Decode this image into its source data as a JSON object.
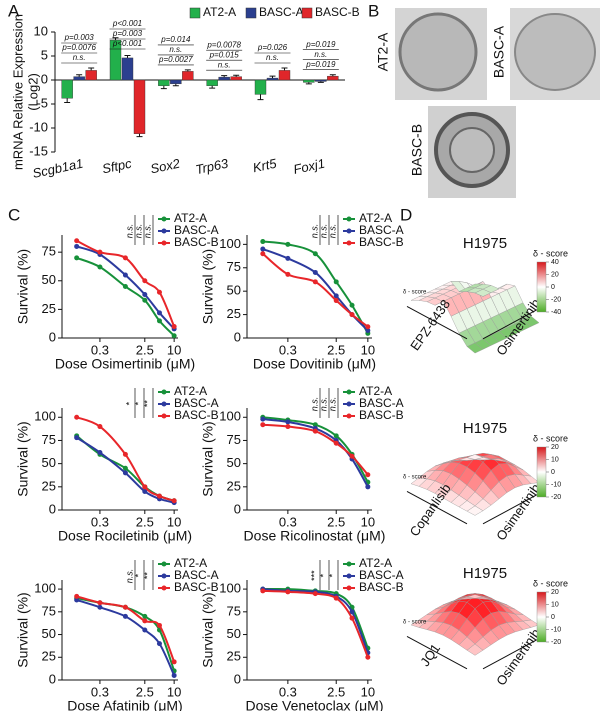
{
  "panel_labels": [
    "A",
    "B",
    "C",
    "D"
  ],
  "micrographs": [
    {
      "label": "AT2-A"
    },
    {
      "label": "BASC-A"
    },
    {
      "label": "BASC-B"
    }
  ],
  "chart_data": [
    {
      "type": "bar",
      "ylabel": [
        "mRNA Relative Expression",
        "(Log2)"
      ],
      "categories": [
        "Scgb1a1",
        "Sftpc",
        "Sox2",
        "Trp63",
        "Krt5",
        "Foxj1"
      ],
      "series": [
        {
          "name": "AT2-A",
          "color": "#22b04b",
          "values": [
            -3.8,
            8.3,
            -1.2,
            -1.2,
            -3.0,
            -0.5
          ],
          "errors": [
            0.9,
            0.5,
            0.6,
            0.5,
            1.1,
            0.3
          ]
        },
        {
          "name": "BASC-A",
          "color": "#2b3f8f",
          "values": [
            0.7,
            4.6,
            -0.8,
            0.6,
            0.4,
            -0.3
          ],
          "errors": [
            0.4,
            0.5,
            0.4,
            0.3,
            0.4,
            0.2
          ]
        },
        {
          "name": "BASC-B",
          "color": "#e0262a",
          "values": [
            2.0,
            -11.2,
            1.8,
            0.7,
            2.0,
            0.8
          ],
          "errors": [
            0.5,
            0.6,
            0.3,
            0.3,
            0.5,
            0.3
          ]
        }
      ],
      "ylim": [
        -15,
        10
      ],
      "yticks": [
        -15,
        -10,
        -5,
        0,
        5,
        10
      ],
      "annotations": [
        [
          "p=0.003",
          "p=0.0076",
          "n.s."
        ],
        [
          "p<0.001",
          "p=0.003",
          "p<0.001"
        ],
        [
          "p=0.014",
          "n.s.",
          "p=0.0027"
        ],
        [
          "p=0.0078",
          "p=0.015",
          "n.s."
        ],
        [
          "p=0.026",
          "n.s."
        ],
        [
          "p=0.019",
          "n.s.",
          "p=0.019"
        ]
      ]
    },
    {
      "type": "line",
      "xlabel": "Dose Osimertinib (μM)",
      "ylabel": "Survival (%)",
      "log_x": true,
      "x": [
        0.1,
        0.3,
        1,
        2.5,
        5,
        10
      ],
      "xlim": [
        0.05,
        12
      ],
      "xticks": [
        0.3,
        2.5,
        10
      ],
      "ylim": [
        0,
        90
      ],
      "yticks": [
        0,
        25,
        50,
        75
      ],
      "series": [
        {
          "name": "AT2-A",
          "color": "#17913a",
          "values": [
            70,
            62,
            45,
            33,
            15,
            2
          ]
        },
        {
          "name": "BASC-A",
          "color": "#2c3a9e",
          "values": [
            80,
            73,
            55,
            38,
            22,
            8
          ]
        },
        {
          "name": "BASC-B",
          "color": "#e8262a",
          "values": [
            85,
            75,
            70,
            50,
            40,
            10
          ]
        }
      ],
      "annotations": [
        "n.s.",
        "n.s.",
        "n.s."
      ]
    },
    {
      "type": "line",
      "xlabel": "Dose Dovitinib (μM)",
      "ylabel": "Survival (%)",
      "log_x": true,
      "x": [
        0.1,
        0.3,
        1,
        2.5,
        5,
        10
      ],
      "xlim": [
        0.05,
        12
      ],
      "xticks": [
        0.3,
        2.5,
        10
      ],
      "ylim": [
        0,
        110
      ],
      "yticks": [
        0,
        25,
        50,
        75,
        100
      ],
      "series": [
        {
          "name": "AT2-A",
          "color": "#17913a",
          "values": [
            103,
            100,
            90,
            60,
            35,
            5
          ]
        },
        {
          "name": "BASC-A",
          "color": "#2c3a9e",
          "values": [
            95,
            85,
            70,
            45,
            25,
            8
          ]
        },
        {
          "name": "BASC-B",
          "color": "#e8262a",
          "values": [
            90,
            68,
            60,
            40,
            25,
            12
          ]
        }
      ],
      "annotations": [
        "n.s.",
        "n.s.",
        "n.s."
      ]
    },
    {
      "type": "line",
      "xlabel": "Dose Rociletinib (μM)",
      "ylabel": "Survival (%)",
      "log_x": true,
      "x": [
        0.1,
        0.3,
        1,
        2.5,
        5,
        10
      ],
      "xlim": [
        0.05,
        12
      ],
      "xticks": [
        0.3,
        2.5,
        10
      ],
      "ylim": [
        0,
        110
      ],
      "yticks": [
        0,
        25,
        50,
        75,
        100
      ],
      "series": [
        {
          "name": "AT2-A",
          "color": "#17913a",
          "values": [
            80,
            60,
            45,
            25,
            15,
            10
          ]
        },
        {
          "name": "BASC-A",
          "color": "#2c3a9e",
          "values": [
            78,
            62,
            40,
            20,
            12,
            8
          ]
        },
        {
          "name": "BASC-B",
          "color": "#e8262a",
          "values": [
            100,
            90,
            60,
            25,
            15,
            10
          ]
        }
      ],
      "annotations": [
        "*",
        "*",
        "**"
      ]
    },
    {
      "type": "line",
      "xlabel": "Dose Ricolinostat (μM)",
      "ylabel": "Survival (%)",
      "log_x": true,
      "x": [
        0.1,
        0.3,
        1,
        2.5,
        5,
        10
      ],
      "xlim": [
        0.05,
        12
      ],
      "xticks": [
        0.3,
        2.5,
        10
      ],
      "ylim": [
        0,
        110
      ],
      "yticks": [
        0,
        25,
        50,
        75,
        100
      ],
      "series": [
        {
          "name": "AT2-A",
          "color": "#17913a",
          "values": [
            100,
            97,
            92,
            80,
            60,
            30
          ]
        },
        {
          "name": "BASC-A",
          "color": "#2c3a9e",
          "values": [
            98,
            95,
            88,
            75,
            55,
            25
          ]
        },
        {
          "name": "BASC-B",
          "color": "#e8262a",
          "values": [
            92,
            90,
            85,
            72,
            58,
            38
          ]
        }
      ],
      "annotations": [
        "n.s.",
        "n.s.",
        "n.s."
      ]
    },
    {
      "type": "line",
      "xlabel": "Dose Afatinib (μM)",
      "ylabel": "Survival (%)",
      "log_x": true,
      "x": [
        0.1,
        0.3,
        1,
        2.5,
        5,
        10
      ],
      "xlim": [
        0.05,
        12
      ],
      "xticks": [
        0.3,
        2.5,
        10
      ],
      "ylim": [
        0,
        110
      ],
      "yticks": [
        0,
        25,
        50,
        75,
        100
      ],
      "series": [
        {
          "name": "AT2-A",
          "color": "#17913a",
          "values": [
            90,
            85,
            80,
            70,
            55,
            10
          ]
        },
        {
          "name": "BASC-A",
          "color": "#2c3a9e",
          "values": [
            88,
            80,
            70,
            55,
            40,
            5
          ]
        },
        {
          "name": "BASC-B",
          "color": "#e8262a",
          "values": [
            92,
            85,
            80,
            65,
            60,
            20
          ]
        }
      ],
      "annotations": [
        "n.s.",
        "*",
        "**"
      ]
    },
    {
      "type": "line",
      "xlabel": "Dose Venetoclax (μM)",
      "ylabel": "Survival (%)",
      "log_x": true,
      "x": [
        0.1,
        0.3,
        1,
        2.5,
        5,
        10
      ],
      "xlim": [
        0.05,
        12
      ],
      "xticks": [
        0.3,
        2.5,
        10
      ],
      "ylim": [
        0,
        110
      ],
      "yticks": [
        0,
        25,
        50,
        75,
        100
      ],
      "series": [
        {
          "name": "AT2-A",
          "color": "#17913a",
          "values": [
            100,
            100,
            98,
            95,
            80,
            35
          ]
        },
        {
          "name": "BASC-A",
          "color": "#2c3a9e",
          "values": [
            100,
            98,
            97,
            92,
            75,
            30
          ]
        },
        {
          "name": "BASC-B",
          "color": "#e8262a",
          "values": [
            98,
            97,
            95,
            90,
            68,
            25
          ]
        }
      ],
      "annotations": [
        "***",
        "*",
        "*"
      ]
    },
    {
      "type": "surface",
      "title": "H1975",
      "xlabel": "EPZ-6438",
      "ylabel": "Osimertinib",
      "zlabel": "δ - score",
      "colorbar_title": "δ - score",
      "clim": [
        -40,
        40
      ],
      "cticks": [
        40,
        20,
        0,
        -20,
        -40
      ]
    },
    {
      "type": "surface",
      "title": "H1975",
      "xlabel": "Copanlisib",
      "ylabel": "Osimertinib",
      "zlabel": "δ - score",
      "colorbar_title": "δ - score",
      "clim": [
        -20,
        20
      ],
      "cticks": [
        20,
        10,
        0,
        -10,
        -20
      ]
    },
    {
      "type": "surface",
      "title": "H1975",
      "xlabel": "JQ1",
      "ylabel": "Osimertinib",
      "zlabel": "δ - score",
      "colorbar_title": "δ - score",
      "clim": [
        -20,
        20
      ],
      "cticks": [
        20,
        10,
        0,
        -10,
        -20
      ]
    }
  ]
}
